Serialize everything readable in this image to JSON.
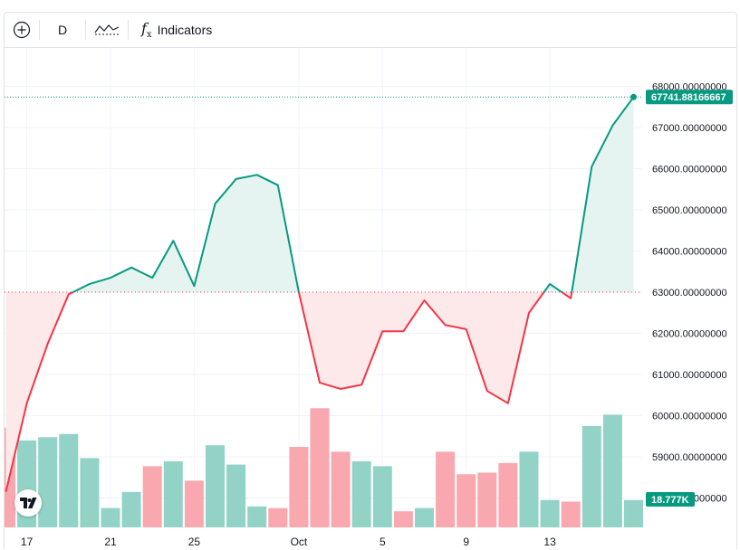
{
  "toolbar": {
    "interval_label": "D",
    "indicators_label": "Indicators"
  },
  "chart_data": {
    "type": "area",
    "base_value": 63000,
    "last_price_label": "67741.88166667",
    "last_volume_label": "18.777K",
    "y_ticks": [
      {
        "value": 68000,
        "label": "68000.00000000"
      },
      {
        "value": 67000,
        "label": "67000.00000000"
      },
      {
        "value": 66000,
        "label": "66000.00000000"
      },
      {
        "value": 65000,
        "label": "65000.00000000"
      },
      {
        "value": 64000,
        "label": "64000.00000000"
      },
      {
        "value": 63000,
        "label": "63000.00000000"
      },
      {
        "value": 62000,
        "label": "62000.00000000"
      },
      {
        "value": 61000,
        "label": "61000.00000000"
      },
      {
        "value": 60000,
        "label": "60000.00000000"
      },
      {
        "value": 59000,
        "label": "59000.00000000"
      },
      {
        "value": 58000,
        "label": "58000.00000000"
      }
    ],
    "x_tick_labels": [
      {
        "index": 1,
        "label": "17"
      },
      {
        "index": 5,
        "label": "21"
      },
      {
        "index": 9,
        "label": "25"
      },
      {
        "index": 14,
        "label": "Oct"
      },
      {
        "index": 18,
        "label": "5"
      },
      {
        "index": 22,
        "label": "9"
      },
      {
        "index": 26,
        "label": "13"
      }
    ],
    "series": [
      {
        "values": [
          58150,
          60300,
          61750,
          62950,
          63200,
          63350,
          63600,
          63350,
          64250,
          63150,
          65150,
          65750,
          65850,
          65600,
          63000,
          60800,
          60650,
          60750,
          62050,
          62050,
          62800,
          62200,
          62100,
          60600,
          60300,
          62500,
          63200,
          62850,
          66050,
          67050,
          67742
        ]
      }
    ],
    "volume": {
      "scale_note": "",
      "values": [
        {
          "v": 0.62,
          "dir": "down"
        },
        {
          "v": 0.54,
          "dir": "up"
        },
        {
          "v": 0.56,
          "dir": "up"
        },
        {
          "v": 0.58,
          "dir": "up"
        },
        {
          "v": 0.43,
          "dir": "up"
        },
        {
          "v": 0.12,
          "dir": "up"
        },
        {
          "v": 0.22,
          "dir": "up"
        },
        {
          "v": 0.38,
          "dir": "down"
        },
        {
          "v": 0.41,
          "dir": "up"
        },
        {
          "v": 0.29,
          "dir": "down"
        },
        {
          "v": 0.51,
          "dir": "up"
        },
        {
          "v": 0.39,
          "dir": "up"
        },
        {
          "v": 0.13,
          "dir": "up"
        },
        {
          "v": 0.12,
          "dir": "down"
        },
        {
          "v": 0.5,
          "dir": "down"
        },
        {
          "v": 0.74,
          "dir": "down"
        },
        {
          "v": 0.47,
          "dir": "down"
        },
        {
          "v": 0.41,
          "dir": "up"
        },
        {
          "v": 0.38,
          "dir": "up"
        },
        {
          "v": 0.1,
          "dir": "down"
        },
        {
          "v": 0.12,
          "dir": "up"
        },
        {
          "v": 0.47,
          "dir": "down"
        },
        {
          "v": 0.33,
          "dir": "down"
        },
        {
          "v": 0.34,
          "dir": "down"
        },
        {
          "v": 0.4,
          "dir": "down"
        },
        {
          "v": 0.47,
          "dir": "up"
        },
        {
          "v": 0.17,
          "dir": "up"
        },
        {
          "v": 0.16,
          "dir": "down"
        },
        {
          "v": 0.63,
          "dir": "up"
        },
        {
          "v": 0.7,
          "dir": "up"
        },
        {
          "v": 0.17,
          "dir": "up"
        }
      ]
    },
    "colors": {
      "up_line": "#089981",
      "down_line": "#f23645",
      "up_fill": "#e6f4f1",
      "down_fill": "#fde8ea",
      "up_volume": "#92d2c7",
      "down_volume": "#f8a8ae",
      "grid": "#f0f3fa",
      "price_tag": "#089981"
    }
  }
}
